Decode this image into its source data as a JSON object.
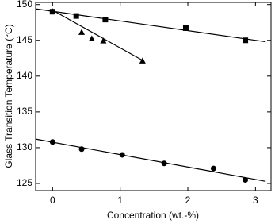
{
  "chart_data": {
    "type": "scatter",
    "xlabel": "Concentration (wt.-%)",
    "ylabel": "Glass Transition Temperature (°C)",
    "xlim": [
      -0.25,
      3.23
    ],
    "ylim": [
      124,
      150.3
    ],
    "xticks": [
      0,
      1,
      2,
      3
    ],
    "yticks": [
      125,
      130,
      135,
      140,
      145,
      150
    ],
    "series": [
      {
        "marker": "square",
        "color": "#000000",
        "x": [
          0,
          0.35,
          0.78,
          1.97,
          2.85
        ],
        "y": [
          149,
          148.4,
          147.9,
          146.7,
          145
        ]
      },
      {
        "marker": "triangle",
        "color": "#000000",
        "x": [
          0,
          0.43,
          0.58,
          0.75,
          1.33
        ],
        "y": [
          149,
          146.1,
          145.2,
          144.9,
          142.1
        ]
      },
      {
        "marker": "circle",
        "color": "#000000",
        "x": [
          0,
          0.43,
          1.03,
          1.65,
          2.38,
          2.85
        ],
        "y": [
          130.8,
          129.8,
          129,
          127.8,
          127.1,
          125.5
        ]
      },
      {
        "marker": "line",
        "color": "#000000",
        "x": [
          -0.25,
          3.15
        ],
        "y": [
          149.4,
          144.8
        ]
      },
      {
        "marker": "line",
        "color": "#000000",
        "x": [
          0,
          1.33
        ],
        "y": [
          149.2,
          142.2
        ]
      },
      {
        "marker": "line",
        "color": "#000000",
        "x": [
          -0.25,
          3.15
        ],
        "y": [
          131.2,
          125.3
        ]
      }
    ]
  }
}
